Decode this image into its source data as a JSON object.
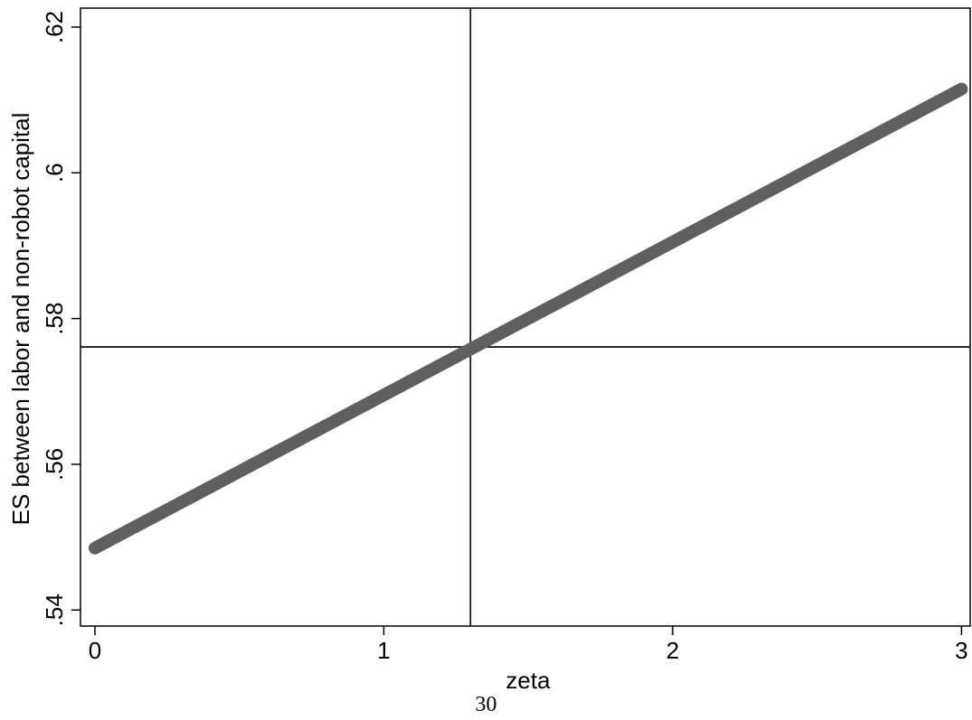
{
  "chart_data": {
    "type": "line",
    "title": "",
    "xlabel": "zeta",
    "ylabel": "ES between labor and non-robot capital",
    "xlim": [
      -0.05,
      3.03
    ],
    "ylim": [
      0.5378,
      0.6226
    ],
    "xticks": [
      0,
      1,
      2,
      3
    ],
    "xtick_labels": [
      "0",
      "1",
      "2",
      "3"
    ],
    "yticks": [
      0.54,
      0.56,
      0.58,
      0.6,
      0.62
    ],
    "ytick_labels": [
      ".54",
      ".56",
      ".58",
      ".6",
      ".62"
    ],
    "grid": false,
    "legend": "none",
    "series": [
      {
        "x": [
          0,
          0.5,
          1,
          1.5,
          2,
          2.5,
          3
        ],
        "y": [
          0.5485,
          0.559,
          0.5695,
          0.58,
          0.5905,
          0.601,
          0.6115
        ],
        "color": "#5f5f5f"
      }
    ],
    "reference_lines": {
      "vertical_x": 1.3,
      "horizontal_y": 0.5761,
      "color": "#1a1a1a"
    }
  },
  "page": {
    "number": "30"
  }
}
